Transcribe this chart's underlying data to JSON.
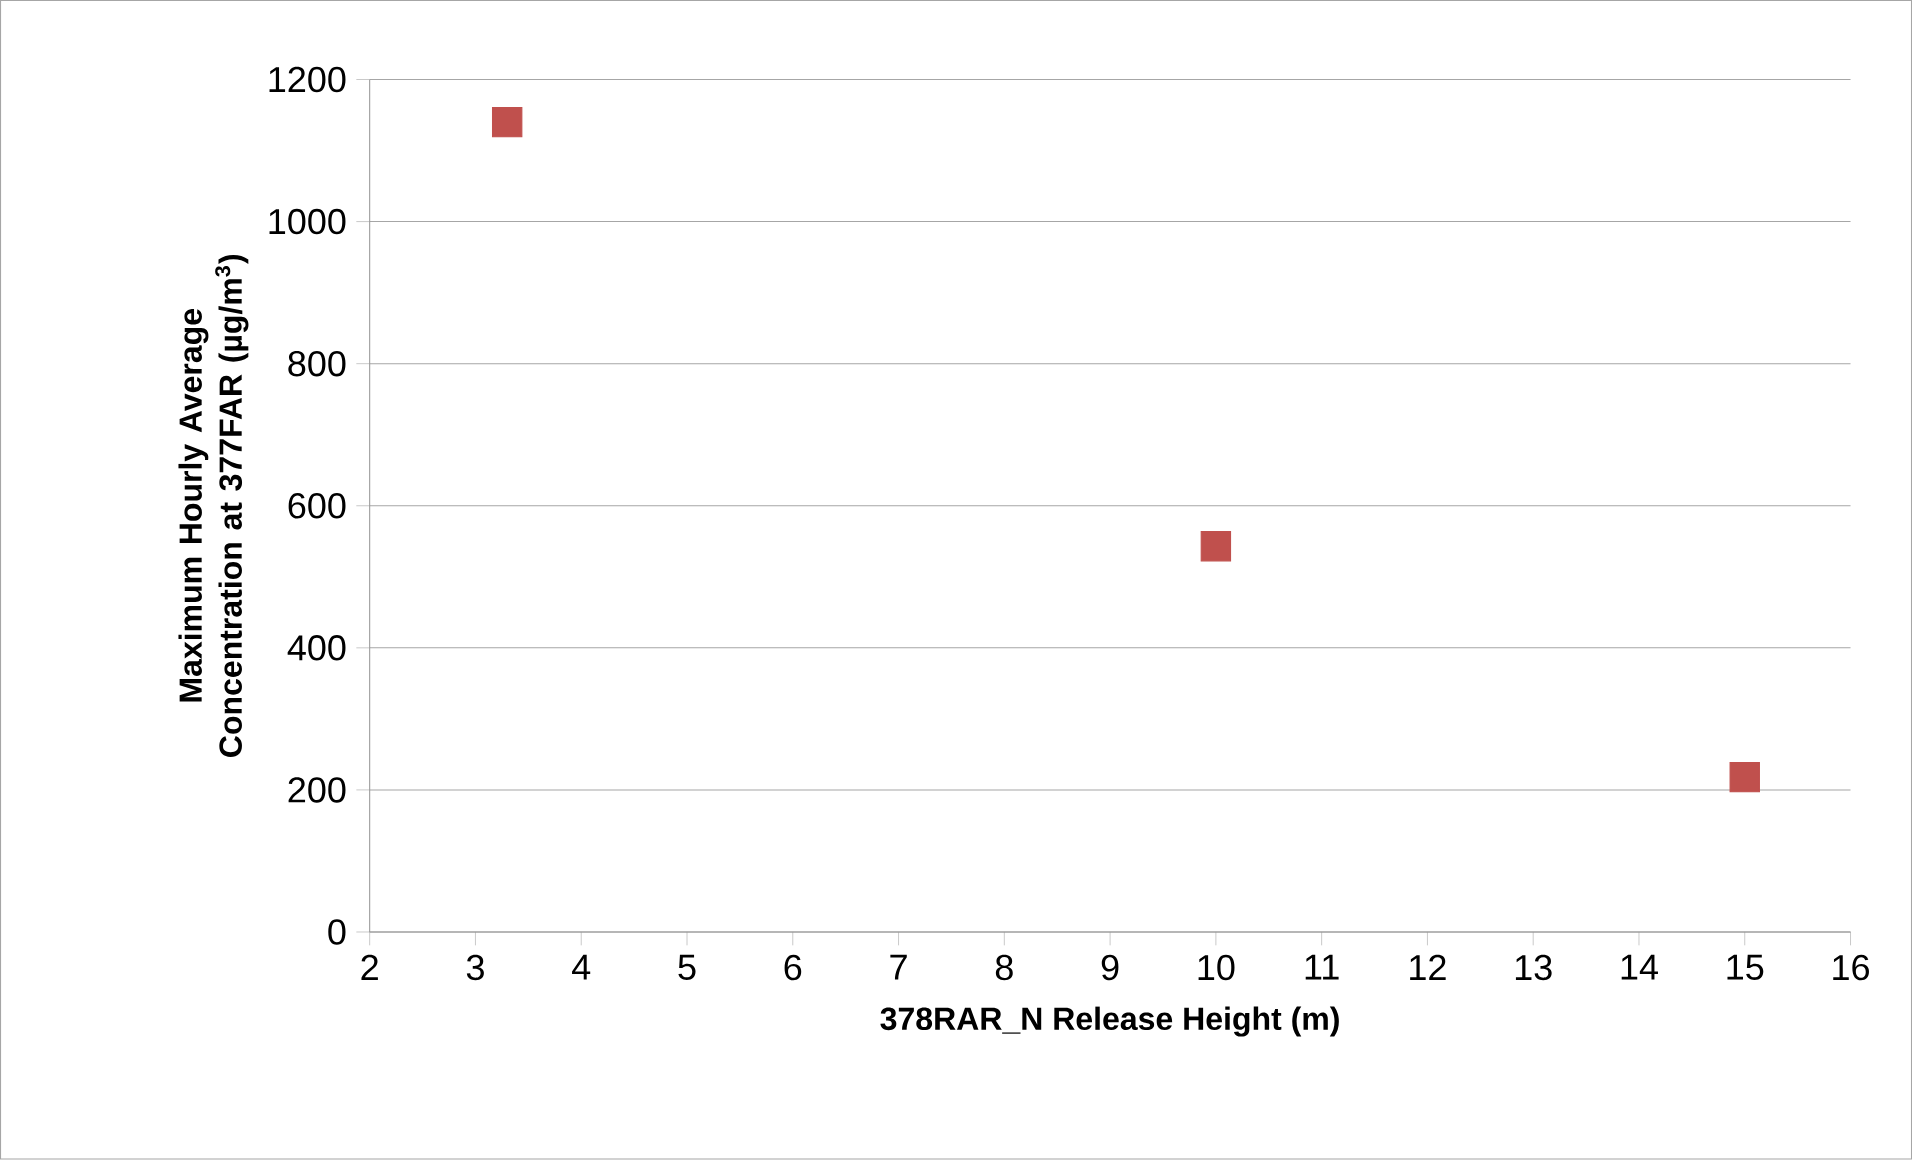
{
  "chart_data": {
    "type": "scatter",
    "xlabel": "378RAR_N Release Height (m)",
    "ylabel": "Maximum Hourly Average Concentration at 377FAR (µg/m$^{3}$)",
    "x": [
      3.3,
      10,
      15
    ],
    "series": [
      {
        "color": "#c0504d",
        "values": [
          1140,
          543,
          218
        ]
      }
    ],
    "xlim": [
      2,
      16
    ],
    "xticks": [
      2,
      3,
      4,
      5,
      6,
      7,
      8,
      9,
      10,
      11,
      12,
      13,
      14,
      15,
      16
    ],
    "ylim": [
      0,
      1200
    ],
    "yticks": [
      0,
      200,
      400,
      600,
      800,
      1000,
      1200
    ],
    "grid": "y",
    "marker": "square"
  }
}
